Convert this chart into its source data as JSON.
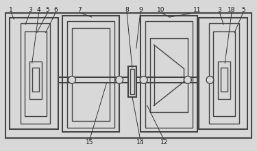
{
  "bg_color": "#d8d8d8",
  "lc": "#444444",
  "fig_width": 3.75,
  "fig_height": 2.21,
  "dpi": 100
}
